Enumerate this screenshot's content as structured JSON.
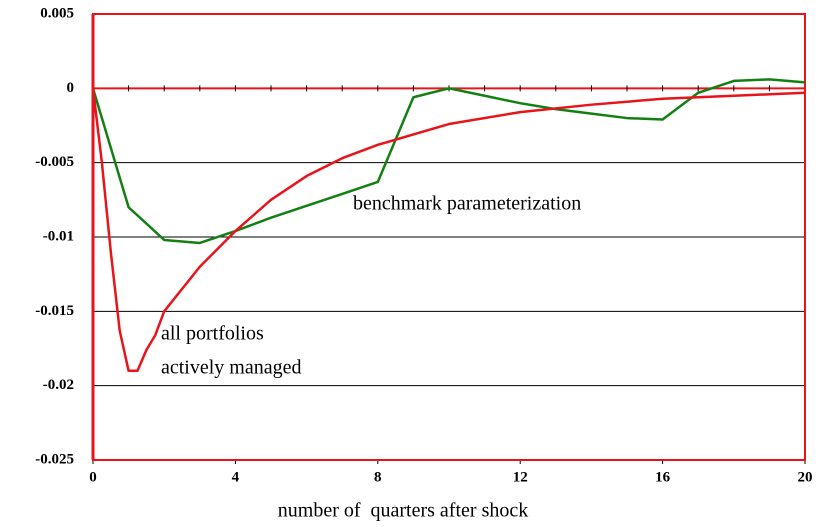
{
  "chart_data": {
    "type": "line",
    "x_label": "number of  quarters after shock",
    "annotations": [
      "benchmark parameterization",
      "all portfolios",
      "actively managed"
    ],
    "series": [
      {
        "name": "benchmark parameterization",
        "color": "#138013",
        "x": [
          0,
          1,
          2,
          3,
          4,
          5,
          6,
          7,
          8,
          9,
          10,
          11,
          12,
          13,
          14,
          15,
          16,
          17,
          18,
          19,
          20
        ],
        "values": [
          0,
          -0.008,
          -0.0102,
          -0.0104,
          -0.0096,
          -0.0087,
          -0.0079,
          -0.0071,
          -0.0063,
          -0.0006,
          0,
          -0.0005,
          -0.001,
          -0.0014,
          -0.0017,
          -0.002,
          -0.0021,
          -0.0003,
          0.0005,
          0.0006,
          0.0004
        ]
      },
      {
        "name": "all portfolios actively managed",
        "color": "#e8141c",
        "x": [
          0,
          0.25,
          0.5,
          0.75,
          1,
          1.25,
          1.5,
          1.75,
          2,
          3,
          4,
          5,
          6,
          7,
          8,
          10,
          12,
          14,
          16,
          18,
          20
        ],
        "values": [
          0,
          -0.005,
          -0.011,
          -0.0163,
          -0.019,
          -0.019,
          -0.0176,
          -0.0166,
          -0.015,
          -0.012,
          -0.0096,
          -0.0075,
          -0.0059,
          -0.0047,
          -0.0038,
          -0.0024,
          -0.0016,
          -0.0011,
          -0.0007,
          -0.0005,
          -0.0003
        ]
      }
    ],
    "xlim": [
      0,
      20
    ],
    "xticks": [
      0,
      4,
      8,
      12,
      16,
      20
    ],
    "ylim": [
      -0.025,
      0.005
    ],
    "yticks": [
      0.005,
      0,
      -0.005,
      -0.01,
      -0.015,
      -0.02,
      -0.025
    ],
    "grid": true,
    "frame_color": "#e8141c"
  }
}
